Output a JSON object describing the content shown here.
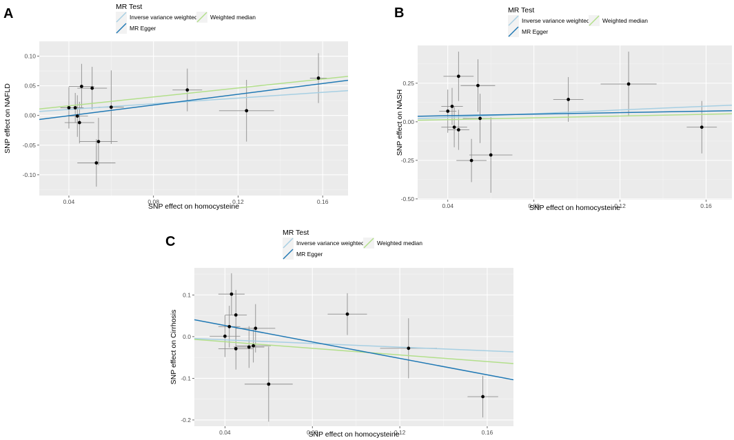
{
  "figure": {
    "panel_labels": [
      "A",
      "B",
      "C"
    ]
  },
  "chart_data": [
    {
      "panel": "A",
      "type": "scatter",
      "xlabel": "SNP effect on homocysteine",
      "ylabel": "SNP effect on NAFLD",
      "xlim": [
        0.026,
        0.172
      ],
      "ylim": [
        -0.135,
        0.125
      ],
      "xticks": [
        0.04,
        0.08,
        0.12,
        0.16
      ],
      "xtick_labels": [
        "0.04",
        "0.08",
        "0.12",
        "0.16"
      ],
      "yticks": [
        -0.1,
        -0.05,
        0.0,
        0.05,
        0.1
      ],
      "ytick_labels": [
        "-0.10",
        "-0.05",
        "0.00",
        "0.05",
        "0.10"
      ],
      "legend": {
        "title": "MR Test",
        "placement": "top",
        "entries": [
          {
            "label": "Inverse variance weighted",
            "color": "#a6cfe3"
          },
          {
            "label": "Weighted median",
            "color": "#b2df8a"
          },
          {
            "label": "MR Egger",
            "color": "#1f78b4"
          }
        ]
      },
      "points": [
        {
          "x": 0.04,
          "y": 0.013,
          "xerr": 0.004,
          "yerr": 0.035
        },
        {
          "x": 0.043,
          "y": 0.013,
          "xerr": 0.004,
          "yerr": 0.025
        },
        {
          "x": 0.044,
          "y": -0.001,
          "xerr": 0.005,
          "yerr": 0.035
        },
        {
          "x": 0.045,
          "y": -0.012,
          "xerr": 0.007,
          "yerr": 0.035
        },
        {
          "x": 0.046,
          "y": 0.049,
          "xerr": 0.006,
          "yerr": 0.038
        },
        {
          "x": 0.051,
          "y": 0.046,
          "xerr": 0.007,
          "yerr": 0.036
        },
        {
          "x": 0.053,
          "y": -0.08,
          "xerr": 0.009,
          "yerr": 0.04
        },
        {
          "x": 0.054,
          "y": -0.044,
          "xerr": 0.009,
          "yerr": 0.04
        },
        {
          "x": 0.06,
          "y": 0.014,
          "xerr": 0.006,
          "yerr": 0.062
        },
        {
          "x": 0.096,
          "y": 0.043,
          "xerr": 0.007,
          "yerr": 0.036
        },
        {
          "x": 0.124,
          "y": 0.008,
          "xerr": 0.013,
          "yerr": 0.052
        },
        {
          "x": 0.158,
          "y": 0.063,
          "xerr": 0.004,
          "yerr": 0.042
        }
      ],
      "lines": [
        {
          "name": "Inverse variance weighted",
          "color": "#a6cfe3",
          "x": [
            0.026,
            0.172
          ],
          "y": [
            0.0068,
            0.0418
          ]
        },
        {
          "name": "Weighted median",
          "color": "#b2df8a",
          "x": [
            0.026,
            0.172
          ],
          "y": [
            0.0109,
            0.0659
          ]
        },
        {
          "name": "MR Egger",
          "color": "#1f78b4",
          "x": [
            0.026,
            0.172
          ],
          "y": [
            -0.0067,
            0.0593
          ]
        }
      ]
    },
    {
      "panel": "B",
      "type": "scatter",
      "xlabel": "SNP effect on homocysteine",
      "ylabel": "SNP effect on NASH",
      "xlim": [
        0.026,
        0.172
      ],
      "ylim": [
        -0.505,
        0.495
      ],
      "xticks": [
        0.04,
        0.08,
        0.12,
        0.16
      ],
      "xtick_labels": [
        "0.04",
        "0.08",
        "0.12",
        "0.16"
      ],
      "yticks": [
        -0.5,
        -0.25,
        0.0,
        0.25
      ],
      "ytick_labels": [
        "-0.50",
        "-0.25",
        "0.00",
        "0.25"
      ],
      "legend": {
        "title": "MR Test",
        "placement": "top",
        "entries": [
          {
            "label": "Inverse variance weighted",
            "color": "#a6cfe3"
          },
          {
            "label": "Weighted median",
            "color": "#b2df8a"
          },
          {
            "label": "MR Egger",
            "color": "#1f78b4"
          }
        ]
      },
      "points": [
        {
          "x": 0.04,
          "y": 0.069,
          "xerr": 0.004,
          "yerr": 0.14
        },
        {
          "x": 0.042,
          "y": 0.1,
          "xerr": 0.005,
          "yerr": 0.12
        },
        {
          "x": 0.043,
          "y": -0.035,
          "xerr": 0.006,
          "yerr": 0.13
        },
        {
          "x": 0.045,
          "y": -0.052,
          "xerr": 0.005,
          "yerr": 0.13
        },
        {
          "x": 0.045,
          "y": 0.295,
          "xerr": 0.007,
          "yerr": 0.16
        },
        {
          "x": 0.051,
          "y": -0.251,
          "xerr": 0.007,
          "yerr": 0.14
        },
        {
          "x": 0.054,
          "y": 0.235,
          "xerr": 0.008,
          "yerr": 0.17
        },
        {
          "x": 0.055,
          "y": 0.022,
          "xerr": 0.008,
          "yerr": 0.16
        },
        {
          "x": 0.06,
          "y": -0.215,
          "xerr": 0.01,
          "yerr": 0.245
        },
        {
          "x": 0.096,
          "y": 0.145,
          "xerr": 0.007,
          "yerr": 0.145
        },
        {
          "x": 0.124,
          "y": 0.245,
          "xerr": 0.013,
          "yerr": 0.21
        },
        {
          "x": 0.158,
          "y": -0.035,
          "xerr": 0.007,
          "yerr": 0.17
        }
      ],
      "lines": [
        {
          "name": "Inverse variance weighted",
          "color": "#a6cfe3",
          "x": [
            0.026,
            0.172
          ],
          "y": [
            0.02,
            0.108
          ]
        },
        {
          "name": "Weighted median",
          "color": "#b2df8a",
          "x": [
            0.026,
            0.172
          ],
          "y": [
            0.01,
            0.052
          ]
        },
        {
          "name": "MR Egger",
          "color": "#1f78b4",
          "x": [
            0.026,
            0.172
          ],
          "y": [
            0.036,
            0.072
          ]
        }
      ]
    },
    {
      "panel": "C",
      "type": "scatter",
      "xlabel": "SNP effect on homocysteine",
      "ylabel": "SNP effect on Cirrhosis",
      "xlim": [
        0.026,
        0.172
      ],
      "ylim": [
        -0.215,
        0.165
      ],
      "xticks": [
        0.04,
        0.08,
        0.12,
        0.16
      ],
      "xtick_labels": [
        "0.04",
        "0.08",
        "0.12",
        "0.16"
      ],
      "yticks": [
        -0.2,
        -0.1,
        0.0,
        0.1
      ],
      "ytick_labels": [
        "-0.2",
        "-0.1",
        "0.0",
        "0.1"
      ],
      "legend": {
        "title": "MR Test",
        "placement": "top",
        "entries": [
          {
            "label": "Inverse variance weighted",
            "color": "#a6cfe3"
          },
          {
            "label": "Weighted median",
            "color": "#b2df8a"
          },
          {
            "label": "MR Egger",
            "color": "#1f78b4"
          }
        ]
      },
      "points": [
        {
          "x": 0.04,
          "y": 0.001,
          "xerr": 0.007,
          "yerr": 0.05
        },
        {
          "x": 0.042,
          "y": 0.024,
          "xerr": 0.005,
          "yerr": 0.05
        },
        {
          "x": 0.043,
          "y": 0.102,
          "xerr": 0.006,
          "yerr": 0.05
        },
        {
          "x": 0.045,
          "y": 0.052,
          "xerr": 0.005,
          "yerr": 0.06
        },
        {
          "x": 0.045,
          "y": -0.029,
          "xerr": 0.008,
          "yerr": 0.05
        },
        {
          "x": 0.051,
          "y": -0.025,
          "xerr": 0.007,
          "yerr": 0.05
        },
        {
          "x": 0.053,
          "y": -0.022,
          "xerr": 0.008,
          "yerr": 0.04
        },
        {
          "x": 0.054,
          "y": 0.02,
          "xerr": 0.009,
          "yerr": 0.058
        },
        {
          "x": 0.06,
          "y": -0.114,
          "xerr": 0.011,
          "yerr": 0.09
        },
        {
          "x": 0.096,
          "y": 0.054,
          "xerr": 0.009,
          "yerr": 0.05
        },
        {
          "x": 0.124,
          "y": -0.028,
          "xerr": 0.013,
          "yerr": 0.072
        },
        {
          "x": 0.158,
          "y": -0.144,
          "xerr": 0.007,
          "yerr": 0.05
        }
      ],
      "lines": [
        {
          "name": "Inverse variance weighted",
          "color": "#a6cfe3",
          "x": [
            0.026,
            0.172
          ],
          "y": [
            -0.0046,
            -0.0366
          ]
        },
        {
          "name": "Weighted median",
          "color": "#b2df8a",
          "x": [
            0.026,
            0.172
          ],
          "y": [
            -0.0066,
            -0.0646
          ]
        },
        {
          "name": "MR Egger",
          "color": "#1f78b4",
          "x": [
            0.026,
            0.172
          ],
          "y": [
            0.0405,
            -0.1035
          ]
        }
      ]
    }
  ]
}
